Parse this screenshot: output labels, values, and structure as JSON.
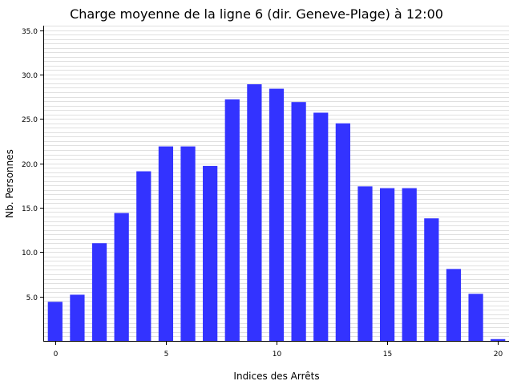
{
  "chart_data": {
    "type": "bar",
    "title": "Charge moyenne de la ligne 6 (dir. Geneve-Plage) à 12:00",
    "xlabel": "Indices des Arrêts",
    "ylabel": "Nb. Personnes",
    "x": [
      0,
      1,
      2,
      3,
      4,
      5,
      6,
      7,
      8,
      9,
      10,
      11,
      12,
      13,
      14,
      15,
      16,
      17,
      18,
      19,
      20
    ],
    "values": [
      4.4,
      5.2,
      11.0,
      14.4,
      19.1,
      21.9,
      21.9,
      19.7,
      27.2,
      28.9,
      28.4,
      26.9,
      25.7,
      24.5,
      17.4,
      17.2,
      17.2,
      13.8,
      8.1,
      5.3,
      0.2
    ],
    "xticks": [
      "0",
      "5",
      "10",
      "15",
      "20"
    ],
    "yticks": [
      "5.0",
      "10.0",
      "15.0",
      "20.0",
      "25.0",
      "30.0",
      "35.0"
    ],
    "ylim": [
      0,
      35.5
    ],
    "xlim": [
      -0.5,
      20.5
    ],
    "minor_grid": true,
    "bar_color": "#3333ff"
  }
}
